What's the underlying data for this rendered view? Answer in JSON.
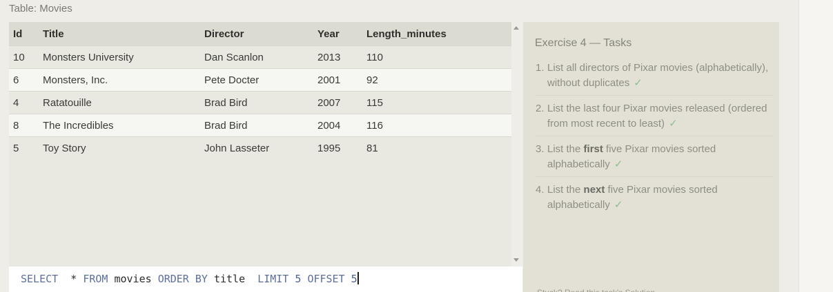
{
  "table_caption": "Table: Movies",
  "columns": [
    "Id",
    "Title",
    "Director",
    "Year",
    "Length_minutes"
  ],
  "rows": [
    {
      "id": "10",
      "title": "Monsters University",
      "director": "Dan Scanlon",
      "year": "2013",
      "length": "110"
    },
    {
      "id": "6",
      "title": "Monsters, Inc.",
      "director": "Pete Docter",
      "year": "2001",
      "length": "92"
    },
    {
      "id": "4",
      "title": "Ratatouille",
      "director": "Brad Bird",
      "year": "2007",
      "length": "115"
    },
    {
      "id": "8",
      "title": "The Incredibles",
      "director": "Brad Bird",
      "year": "2004",
      "length": "116"
    },
    {
      "id": "5",
      "title": "Toy Story",
      "director": "John Lasseter",
      "year": "1995",
      "length": "81"
    }
  ],
  "query": {
    "select": "SELECT",
    "star": "*",
    "from": "FROM",
    "table": "movies",
    "order_by": "ORDER BY",
    "column": "title",
    "limit": "LIMIT",
    "limit_value": "5",
    "offset": "OFFSET",
    "offset_value": "5"
  },
  "tasks_panel": {
    "title": "Exercise 4 — Tasks",
    "tasks": [
      {
        "num": "1.",
        "text_before": "List all directors of Pixar movies (alphabetically), without duplicates",
        "bold": "",
        "text_after": "",
        "check": "✓"
      },
      {
        "num": "2.",
        "text_before": "List the last four Pixar movies released (ordered from most recent to least)",
        "bold": "",
        "text_after": "",
        "check": "✓"
      },
      {
        "num": "3.",
        "text_before": "List the ",
        "bold": "first",
        "text_after": " five Pixar movies sorted alphabetically",
        "check": "✓"
      },
      {
        "num": "4.",
        "text_before": "List the ",
        "bold": "next",
        "text_after": " five Pixar movies sorted alphabetically",
        "check": "✓"
      }
    ],
    "footer_note": "Stuck? Read this task's Solution"
  }
}
